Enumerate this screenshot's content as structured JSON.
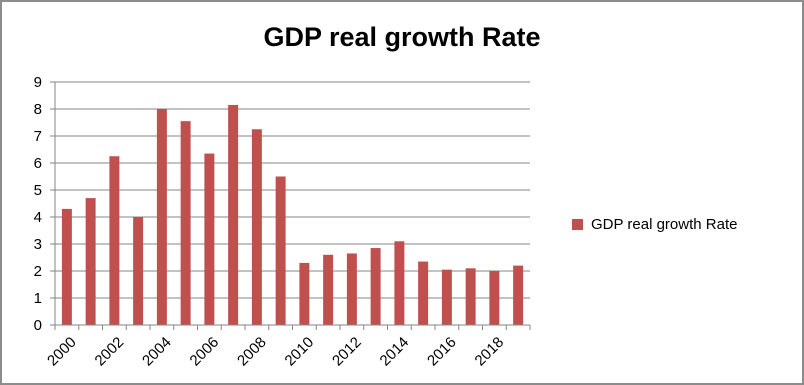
{
  "chart_data": {
    "type": "bar",
    "title": "GDP real growth Rate",
    "xlabel": "",
    "ylabel": "",
    "ylim": [
      0,
      9
    ],
    "yticks": [
      0,
      1,
      2,
      3,
      4,
      5,
      6,
      7,
      8,
      9
    ],
    "grid": true,
    "legend_position": "right",
    "categories": [
      "2000",
      "2001",
      "2002",
      "2003",
      "2004",
      "2005",
      "2006",
      "2007",
      "2008",
      "2009",
      "2010",
      "2011",
      "2012",
      "2013",
      "2014",
      "2015",
      "2016",
      "2017",
      "2018",
      "2019"
    ],
    "xtick_labels": [
      "2000",
      "2002",
      "2004",
      "2006",
      "2008",
      "2010",
      "2012",
      "2014",
      "2016",
      "2018"
    ],
    "series": [
      {
        "name": "GDP real growth Rate",
        "color": "#c0504d",
        "values": [
          4.3,
          4.7,
          6.25,
          4.0,
          8.0,
          7.55,
          6.35,
          8.15,
          7.25,
          5.5,
          2.3,
          2.6,
          2.65,
          2.85,
          3.1,
          2.35,
          2.05,
          2.1,
          2.0,
          2.2
        ]
      }
    ]
  }
}
